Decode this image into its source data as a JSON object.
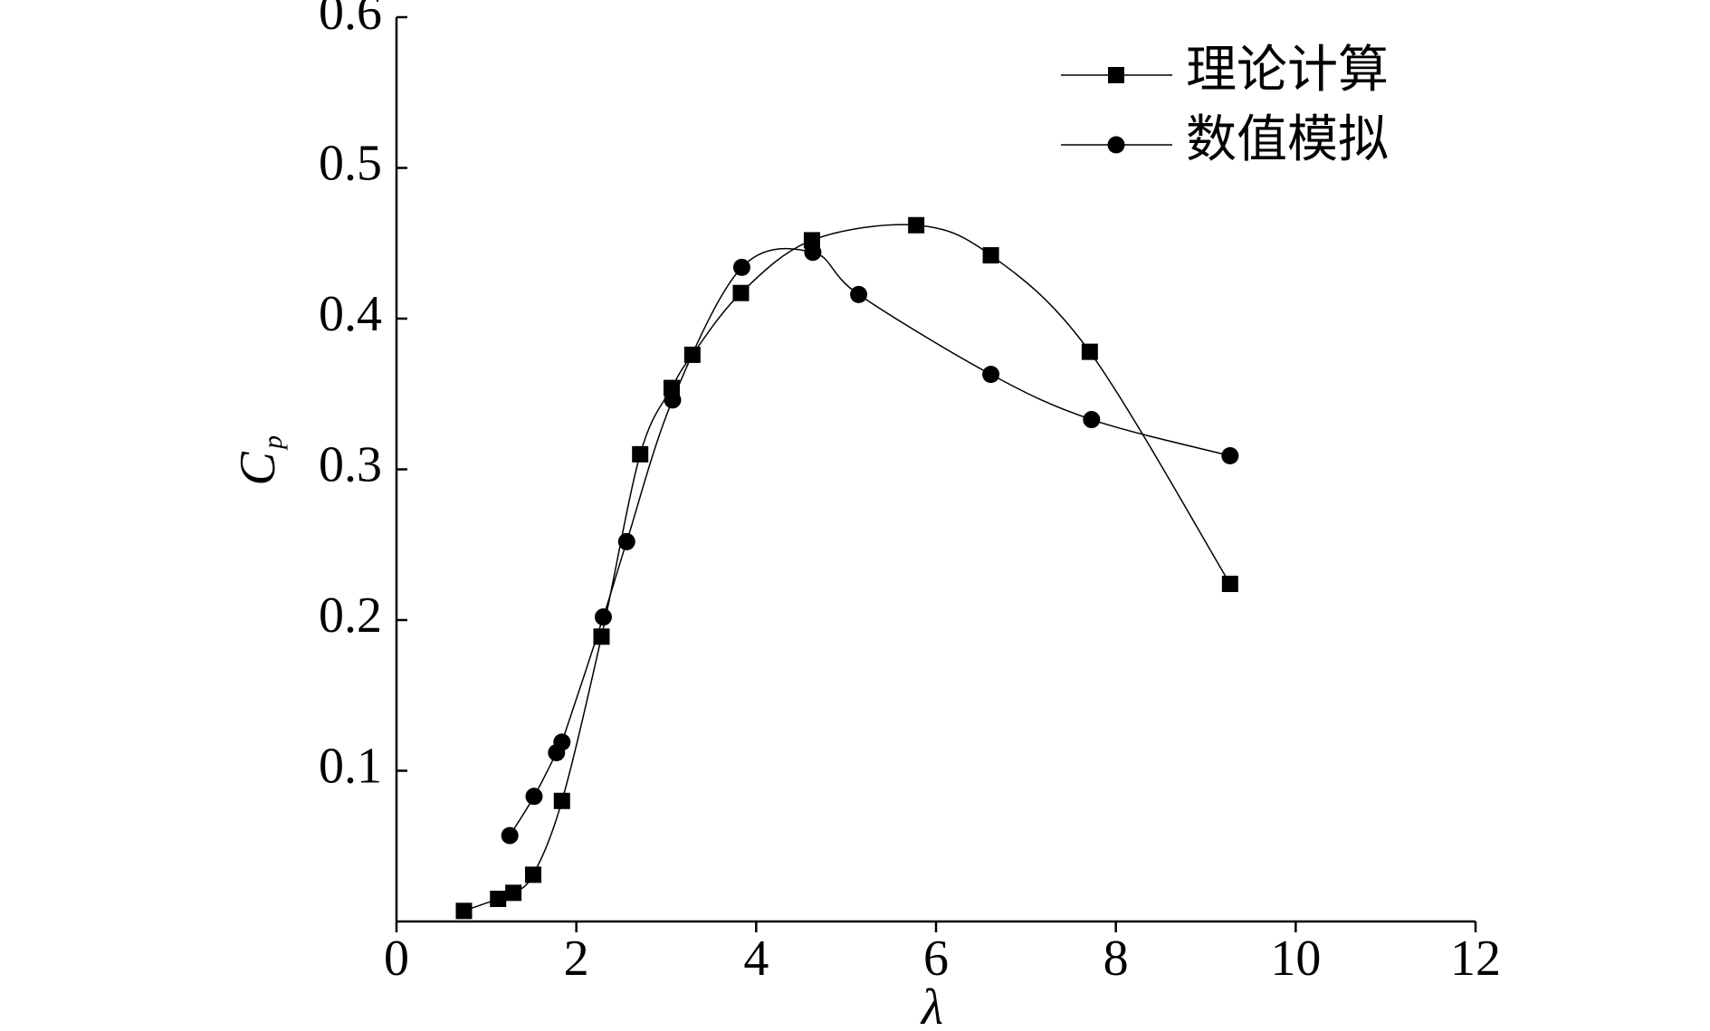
{
  "chart_data": {
    "type": "line",
    "x_label": "λ",
    "y_label": "C",
    "y_label_subscript": "p",
    "xlim": [
      0,
      12
    ],
    "xticks": [
      0,
      2,
      4,
      6,
      8,
      10,
      12
    ],
    "ylim": [
      0,
      0.6
    ],
    "yticks": [
      0.1,
      0.2,
      0.3,
      0.4,
      0.5,
      0.6
    ],
    "grid": false,
    "legend": "upper right",
    "smooth": true,
    "series": [
      {
        "name": "理论计算",
        "color": "#000000",
        "marker": "square",
        "x": [
          0.75,
          1.13,
          1.3,
          1.52,
          1.84,
          2.28,
          2.71,
          3.06,
          3.29,
          3.83,
          4.62,
          5.78,
          6.61,
          7.71,
          9.27
        ],
        "values": [
          0.007,
          0.015,
          0.019,
          0.031,
          0.08,
          0.189,
          0.31,
          0.354,
          0.376,
          0.417,
          0.452,
          0.462,
          0.442,
          0.378,
          0.224
        ]
      },
      {
        "name": "数值模拟",
        "color": "#000000",
        "marker": "circle",
        "x": [
          1.26,
          1.53,
          1.78,
          1.84,
          2.3,
          2.56,
          3.07,
          3.84,
          4.63,
          5.14,
          6.61,
          7.73,
          9.27
        ],
        "values": [
          0.057,
          0.083,
          0.112,
          0.119,
          0.202,
          0.252,
          0.346,
          0.434,
          0.444,
          0.416,
          0.363,
          0.333,
          0.309
        ]
      }
    ]
  }
}
